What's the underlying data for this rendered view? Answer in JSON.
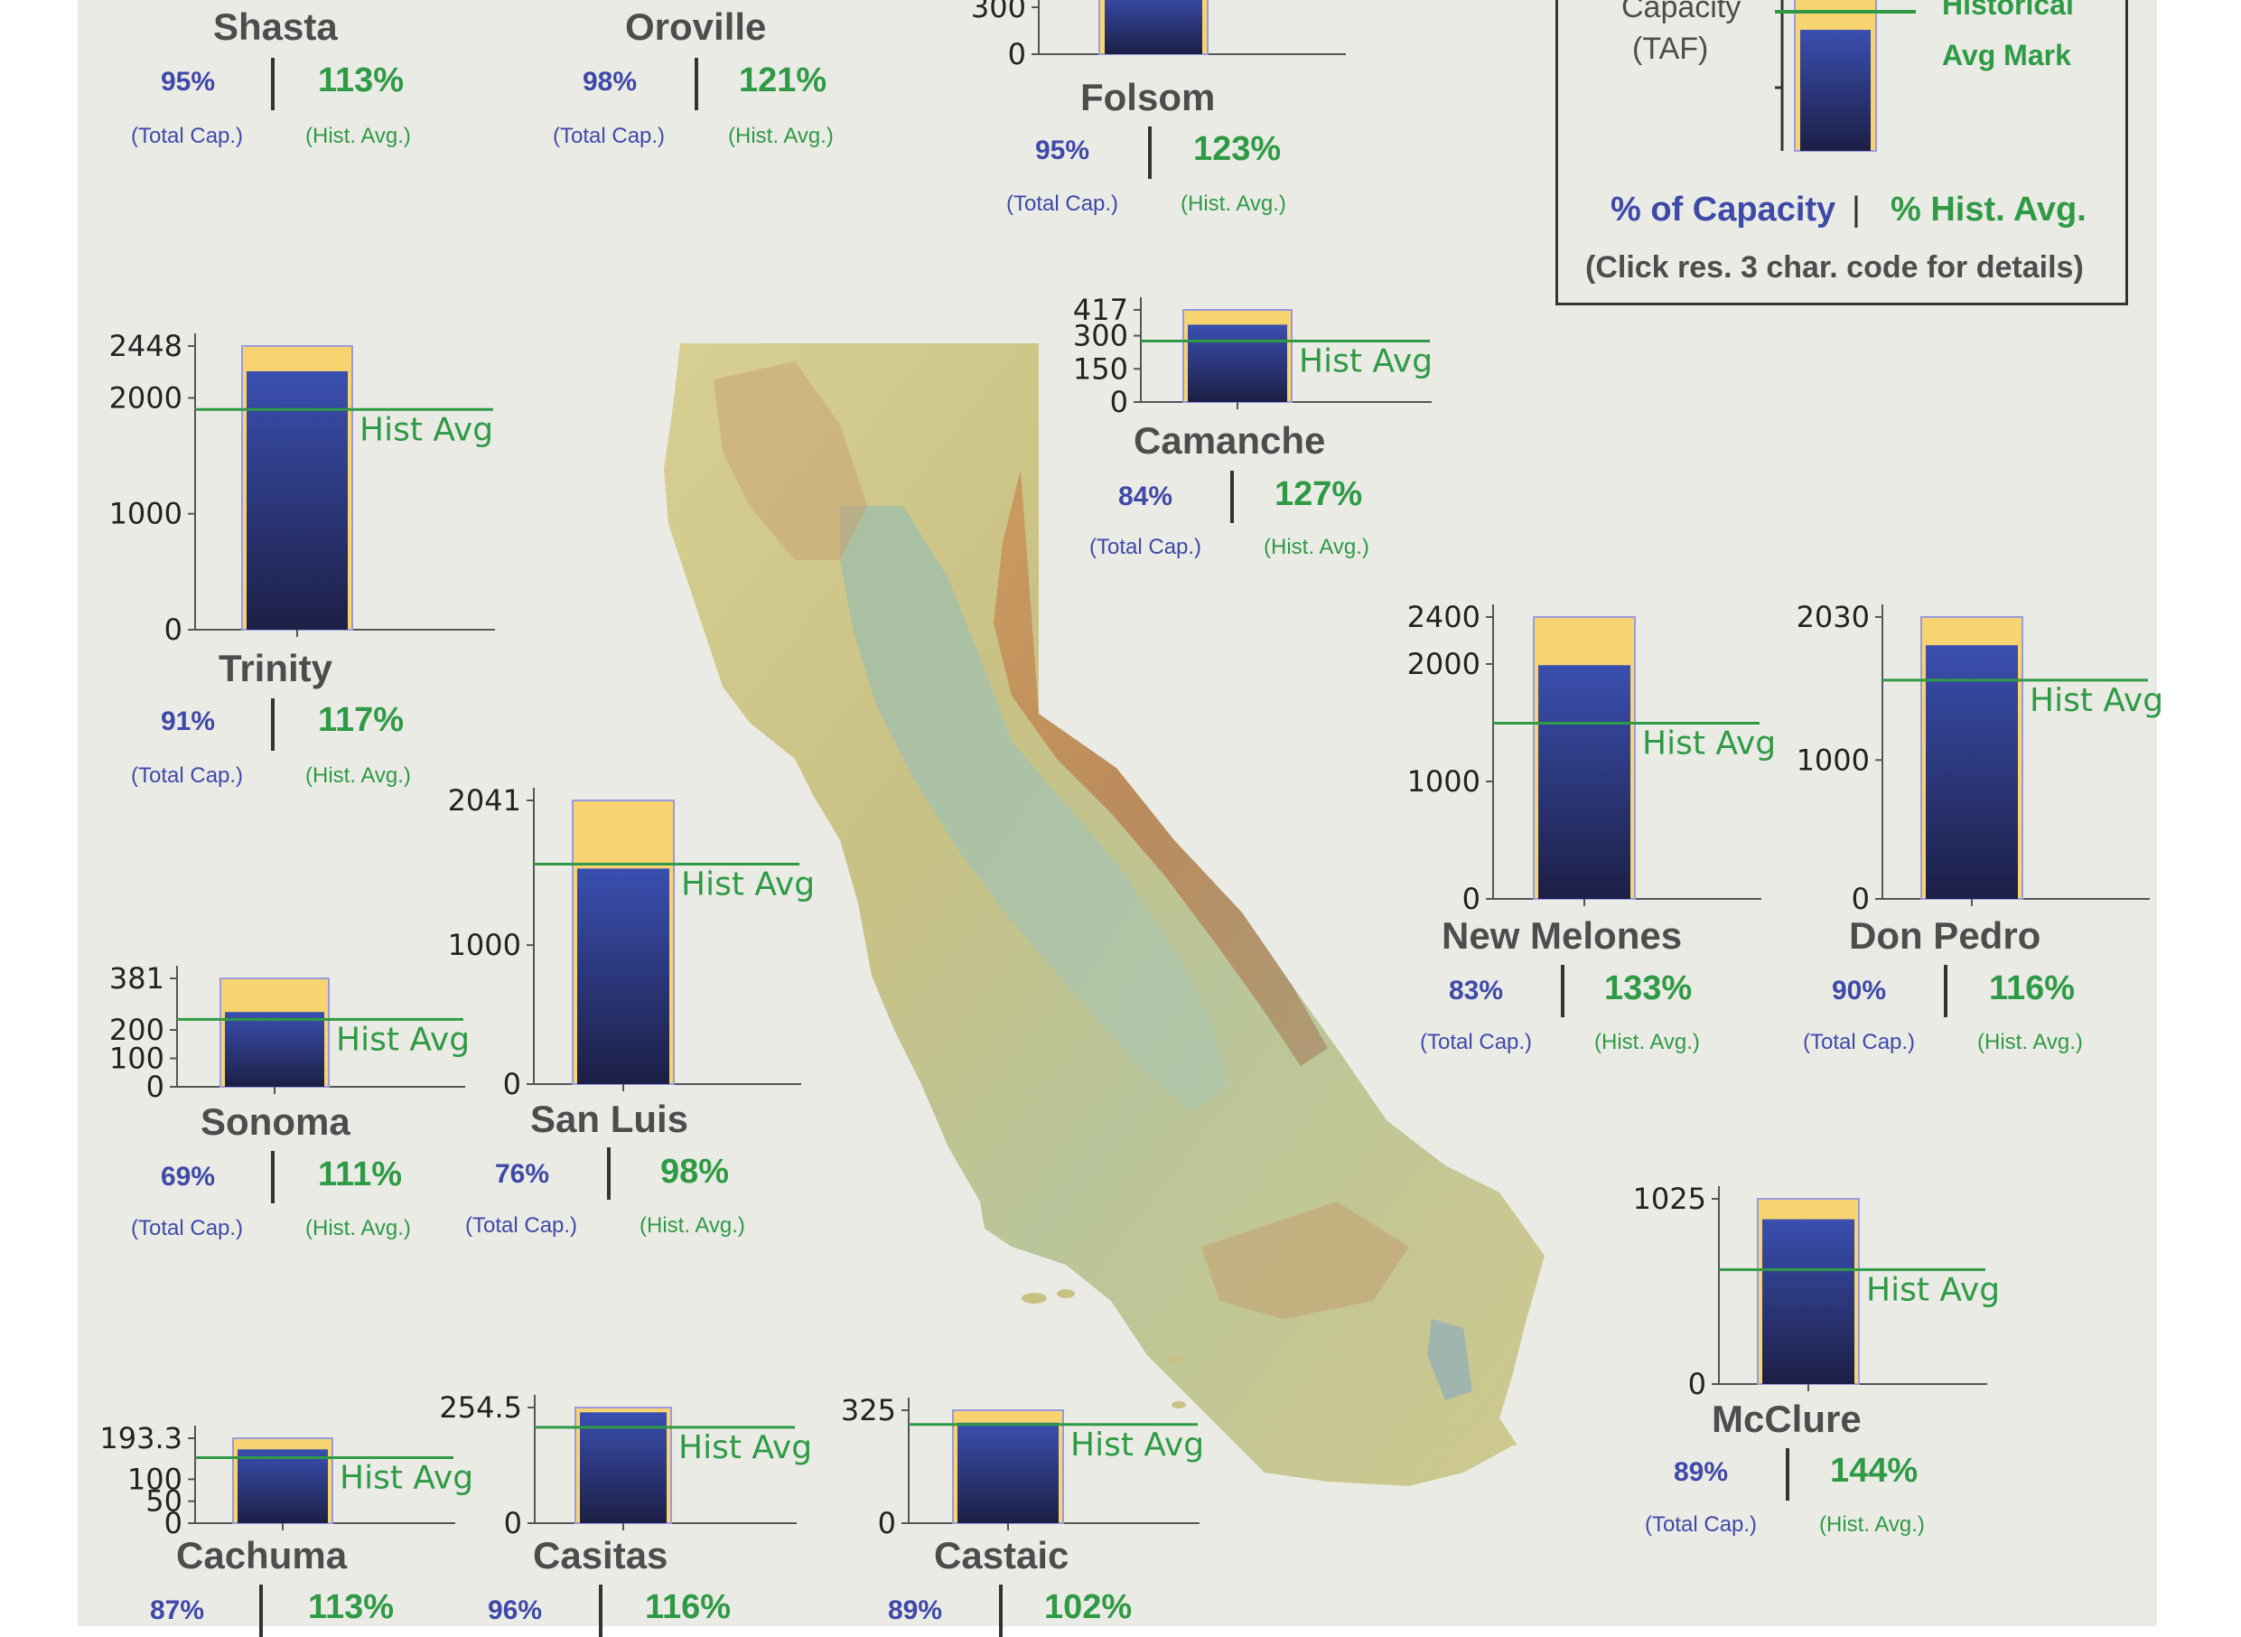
{
  "colors": {
    "total_capacity": "#f7d46f",
    "storage_top": "#3a4fb0",
    "storage_bottom": "#1c1f45",
    "hist_avg_line": "#2f9a45",
    "pct_capacity_text": "#3e49a8",
    "pct_hist_text": "#2f9a45",
    "panel_bg": "#ebebe6"
  },
  "labels": {
    "hist_avg": "Hist Avg",
    "total_cap": "(Total Cap.)",
    "hist_avg_paren": "(Hist. Avg.)"
  },
  "legend": {
    "capacity_line1": "Capacity",
    "capacity_line2": "(TAF)",
    "historical_line1": "Historical",
    "historical_line2": "Avg Mark",
    "pct_capacity": "% of Capacity",
    "divider": "|",
    "pct_hist": "% Hist. Avg.",
    "note": "(Click res. 3 char. code for details)"
  },
  "reservoirs": [
    {
      "name": "Shasta",
      "pct_capacity": "95%",
      "pct_hist": "113%"
    },
    {
      "name": "Oroville",
      "pct_capacity": "98%",
      "pct_hist": "121%"
    },
    {
      "name": "Folsom",
      "pct_capacity": "95%",
      "pct_hist": "123%",
      "ticks": [
        "300",
        "0"
      ]
    },
    {
      "name": "Trinity",
      "pct_capacity": "91%",
      "pct_hist": "117%",
      "ticks": [
        "2448",
        "2000",
        "1000",
        "0"
      ],
      "capacity": 2448,
      "storage": 2230,
      "hist_avg": 1900,
      "ymax": 2448
    },
    {
      "name": "Camanche",
      "pct_capacity": "84%",
      "pct_hist": "127%",
      "ticks": [
        "417",
        "300",
        "150",
        "0"
      ],
      "capacity": 417,
      "storage": 350,
      "hist_avg": 276,
      "ymax": 417
    },
    {
      "name": "New Melones",
      "pct_capacity": "83%",
      "pct_hist": "133%",
      "ticks": [
        "2400",
        "2000",
        "1000",
        "0"
      ],
      "capacity": 2400,
      "storage": 1990,
      "hist_avg": 1496,
      "ymax": 2400
    },
    {
      "name": "Don Pedro",
      "pct_capacity": "90%",
      "pct_hist": "116%",
      "ticks": [
        "2030",
        "1000",
        "0"
      ],
      "capacity": 2030,
      "storage": 1827,
      "hist_avg": 1575,
      "ymax": 2030
    },
    {
      "name": "San Luis",
      "pct_capacity": "76%",
      "pct_hist": "98%",
      "ticks": [
        "2041",
        "1000",
        "0"
      ],
      "capacity": 2041,
      "storage": 1551,
      "hist_avg": 1583,
      "ymax": 2041
    },
    {
      "name": "Sonoma",
      "pct_capacity": "69%",
      "pct_hist": "111%",
      "ticks": [
        "381",
        "200",
        "100",
        "0"
      ],
      "capacity": 381,
      "storage": 263,
      "hist_avg": 237,
      "ymax": 381
    },
    {
      "name": "McClure",
      "pct_capacity": "89%",
      "pct_hist": "144%",
      "ticks": [
        "1025",
        "0"
      ],
      "capacity": 1025,
      "storage": 912,
      "hist_avg": 633,
      "ymax": 1025
    },
    {
      "name": "Cachuma",
      "pct_capacity": "87%",
      "pct_hist": "113%",
      "ticks": [
        "193.3",
        "100",
        "50",
        "0"
      ],
      "capacity": 193.3,
      "storage": 168,
      "hist_avg": 149,
      "ymax": 193.3
    },
    {
      "name": "Casitas",
      "pct_capacity": "96%",
      "pct_hist": "116%",
      "ticks": [
        "254.5",
        "0"
      ],
      "capacity": 254.5,
      "storage": 244,
      "hist_avg": 211,
      "ymax": 254.5
    },
    {
      "name": "Castaic",
      "pct_capacity": "89%",
      "pct_hist": "102%",
      "ticks": [
        "325",
        "0"
      ],
      "capacity": 325,
      "storage": 289,
      "hist_avg": 284,
      "ymax": 325
    }
  ]
}
